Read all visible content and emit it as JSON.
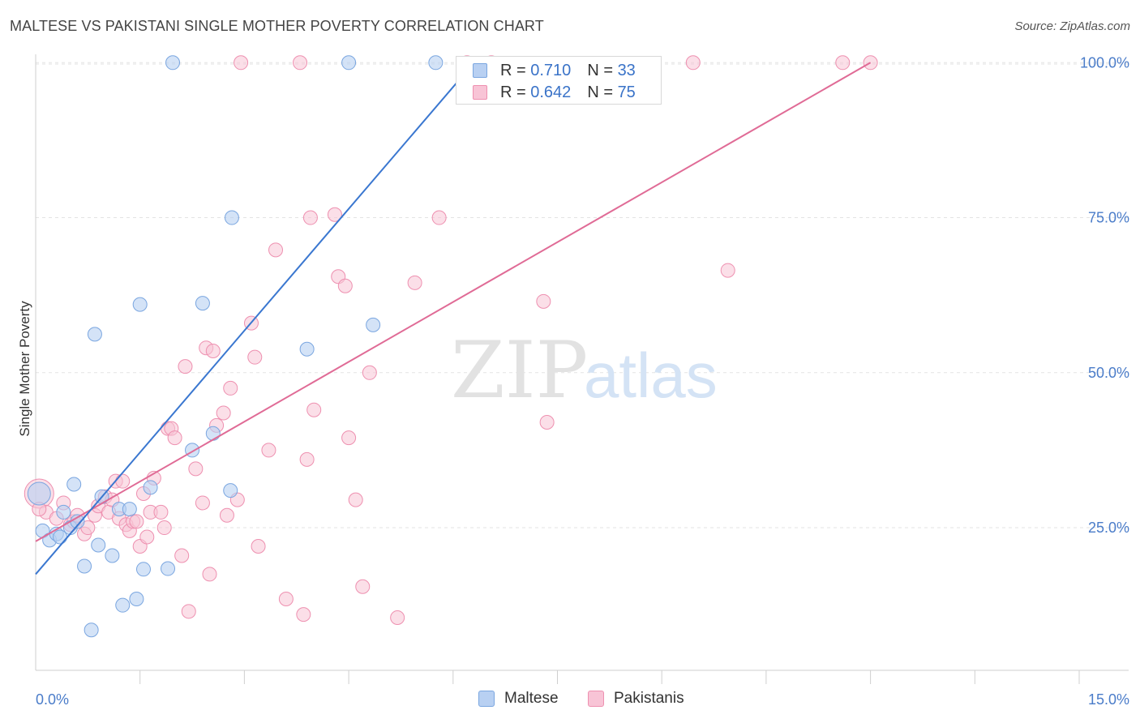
{
  "header": {
    "title": "MALTESE VS PAKISTANI SINGLE MOTHER POVERTY CORRELATION CHART",
    "source": "Source: ZipAtlas.com"
  },
  "watermark": {
    "zip": "ZIP",
    "atlas": "atlas"
  },
  "legend_top": {
    "rows": [
      {
        "r_label": "R =",
        "r_value": "0.710",
        "n_label": "N =",
        "n_value": "33"
      },
      {
        "r_label": "R =",
        "r_value": "0.642",
        "n_label": "N =",
        "n_value": "75"
      }
    ]
  },
  "legend_bottom": {
    "maltese": "Maltese",
    "pakistanis": "Pakistanis"
  },
  "colors": {
    "maltese_fill": "#b8d0f2",
    "maltese_stroke": "#7aa6e0",
    "maltese_line": "#3a77d0",
    "pakistani_fill": "#f8c4d6",
    "pakistani_stroke": "#ee90b0",
    "pakistani_line": "#e06b96",
    "tick_label": "#4a7cc9"
  },
  "chart_data": {
    "type": "scatter",
    "title": "MALTESE VS PAKISTANI SINGLE MOTHER POVERTY CORRELATION CHART",
    "xlabel": "",
    "ylabel": "Single Mother Poverty",
    "xlim": [
      0,
      15
    ],
    "ylim": [
      2,
      102
    ],
    "x_tick_labels": [
      "0.0%",
      "15.0%"
    ],
    "y_ticks": [
      25,
      50,
      75,
      100
    ],
    "y_tick_labels": [
      "25.0%",
      "50.0%",
      "75.0%",
      "100.0%"
    ],
    "grid": true,
    "series": [
      {
        "name": "Maltese",
        "r": 0.71,
        "n": 33,
        "trend": {
          "x0": 0.0,
          "y0": 17.5,
          "x1": 6.3,
          "y1": 100.0
        },
        "points": [
          [
            0.05,
            30.5
          ],
          [
            0.1,
            24.5
          ],
          [
            0.2,
            23.0
          ],
          [
            0.3,
            24.0
          ],
          [
            0.35,
            23.5
          ],
          [
            0.4,
            27.5
          ],
          [
            0.5,
            25.0
          ],
          [
            0.55,
            32.0
          ],
          [
            0.6,
            26.0
          ],
          [
            0.7,
            18.8
          ],
          [
            0.8,
            8.5
          ],
          [
            0.85,
            56.2
          ],
          [
            0.9,
            22.2
          ],
          [
            0.95,
            30.0
          ],
          [
            1.1,
            20.5
          ],
          [
            1.2,
            28.0
          ],
          [
            1.25,
            12.5
          ],
          [
            1.35,
            28.0
          ],
          [
            1.45,
            13.5
          ],
          [
            1.5,
            61.0
          ],
          [
            1.55,
            18.3
          ],
          [
            1.65,
            31.5
          ],
          [
            1.9,
            18.4
          ],
          [
            1.97,
            100.0
          ],
          [
            2.25,
            37.5
          ],
          [
            2.4,
            61.2
          ],
          [
            2.55,
            40.2
          ],
          [
            2.8,
            31.0
          ],
          [
            2.82,
            75.0
          ],
          [
            3.9,
            53.8
          ],
          [
            4.5,
            100.0
          ],
          [
            4.85,
            57.7
          ],
          [
            5.75,
            100.0
          ]
        ]
      },
      {
        "name": "Pakistanis",
        "r": 0.642,
        "n": 75,
        "trend": {
          "x0": 0.0,
          "y0": 22.8,
          "x1": 12.0,
          "y1": 100.0
        },
        "points": [
          [
            0.05,
            30.5
          ],
          [
            0.15,
            27.5
          ],
          [
            0.3,
            26.5
          ],
          [
            0.4,
            29.0
          ],
          [
            0.5,
            25.5
          ],
          [
            0.55,
            26.0
          ],
          [
            0.6,
            27.0
          ],
          [
            0.7,
            24.0
          ],
          [
            0.75,
            25.0
          ],
          [
            0.85,
            27.0
          ],
          [
            0.9,
            28.5
          ],
          [
            1.0,
            30.0
          ],
          [
            1.05,
            27.5
          ],
          [
            1.1,
            29.5
          ],
          [
            1.15,
            32.5
          ],
          [
            1.2,
            26.5
          ],
          [
            1.25,
            32.5
          ],
          [
            1.3,
            25.5
          ],
          [
            1.35,
            24.5
          ],
          [
            1.4,
            26.0
          ],
          [
            1.45,
            26.0
          ],
          [
            1.5,
            22.0
          ],
          [
            1.55,
            30.5
          ],
          [
            1.6,
            23.5
          ],
          [
            1.65,
            27.5
          ],
          [
            1.7,
            33.0
          ],
          [
            1.8,
            27.5
          ],
          [
            1.85,
            25.0
          ],
          [
            1.9,
            41.0
          ],
          [
            1.95,
            41.0
          ],
          [
            2.0,
            39.5
          ],
          [
            2.1,
            20.5
          ],
          [
            2.15,
            51.0
          ],
          [
            2.2,
            11.5
          ],
          [
            2.3,
            34.5
          ],
          [
            2.4,
            29.0
          ],
          [
            2.45,
            54.0
          ],
          [
            2.5,
            17.5
          ],
          [
            2.55,
            53.5
          ],
          [
            2.6,
            41.5
          ],
          [
            2.7,
            43.5
          ],
          [
            2.75,
            27.0
          ],
          [
            2.8,
            47.5
          ],
          [
            2.9,
            29.5
          ],
          [
            2.95,
            100.0
          ],
          [
            3.1,
            58.0
          ],
          [
            3.15,
            52.5
          ],
          [
            3.2,
            22.0
          ],
          [
            3.35,
            37.5
          ],
          [
            3.45,
            69.8
          ],
          [
            3.6,
            13.5
          ],
          [
            3.8,
            100.0
          ],
          [
            3.85,
            11.0
          ],
          [
            3.9,
            36.0
          ],
          [
            3.95,
            75.0
          ],
          [
            4.0,
            44.0
          ],
          [
            4.3,
            75.5
          ],
          [
            4.35,
            65.5
          ],
          [
            4.45,
            64.0
          ],
          [
            4.5,
            39.5
          ],
          [
            4.6,
            29.5
          ],
          [
            4.7,
            15.5
          ],
          [
            4.8,
            50.0
          ],
          [
            5.2,
            10.5
          ],
          [
            5.45,
            64.5
          ],
          [
            5.8,
            75.0
          ],
          [
            6.2,
            100.0
          ],
          [
            6.55,
            100.0
          ],
          [
            7.3,
            61.5
          ],
          [
            7.35,
            42.0
          ],
          [
            9.45,
            100.0
          ],
          [
            9.95,
            66.5
          ],
          [
            11.6,
            100.0
          ],
          [
            12.0,
            100.0
          ],
          [
            0.05,
            28.0
          ]
        ]
      }
    ]
  }
}
